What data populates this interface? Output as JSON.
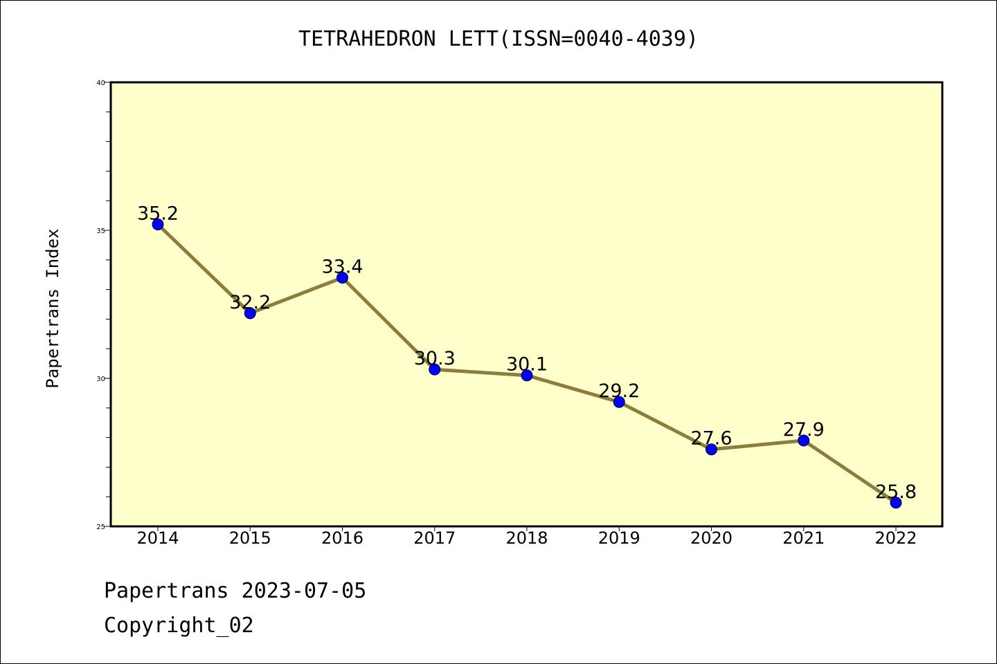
{
  "colors": {
    "plot_background": "#ffffcc",
    "line": "#8b7d3a",
    "marker": "#0000ff"
  },
  "footer": {
    "line1": "Papertrans 2023-07-05",
    "line2": "Copyright_02"
  },
  "chart_data": {
    "type": "line",
    "title": "TETRAHEDRON LETT(ISSN=0040-4039)",
    "xlabel": "",
    "ylabel": "Papertrans Index",
    "categories": [
      "2014",
      "2015",
      "2016",
      "2017",
      "2018",
      "2019",
      "2020",
      "2021",
      "2022"
    ],
    "values": [
      35.2,
      32.2,
      33.4,
      30.3,
      30.1,
      29.2,
      27.6,
      27.9,
      25.8
    ],
    "data_labels": [
      "35.2",
      "32.2",
      "33.4",
      "30.3",
      "30.1",
      "29.2",
      "27.6",
      "27.9",
      "25.8"
    ],
    "ylim": [
      25,
      40
    ],
    "yticks": [
      "25",
      "30",
      "35",
      "40"
    ],
    "grid": false,
    "legend": "none"
  }
}
